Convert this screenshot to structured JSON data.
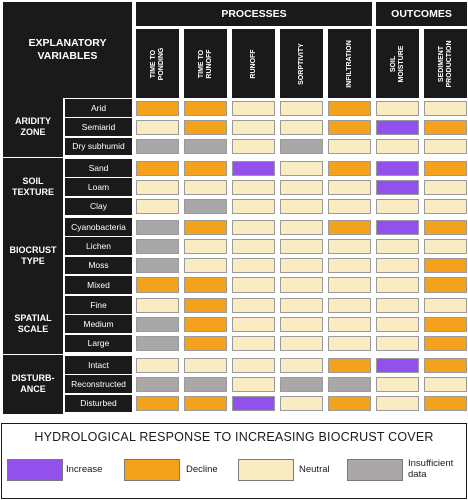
{
  "header": {
    "explanatory": "EXPLANATORY\nVARIABLES",
    "processes": "PROCESSES",
    "outcomes": "OUTCOMES"
  },
  "columns": [
    "TIME TO\nPONDING",
    "TIME TO\nRUNOFF",
    "RUNOFF",
    "SORPTIVITY",
    "INFILTRATION",
    "SOIL\nMOISTURE",
    "SEDIMENT\nPRODUCTION"
  ],
  "groups": [
    {
      "label": "ARIDITY\nZONE",
      "rows": [
        {
          "label": "Arid",
          "cells": [
            "D",
            "D",
            "N",
            "N",
            "D",
            "N",
            "N"
          ]
        },
        {
          "label": "Semiarid",
          "cells": [
            "N",
            "D",
            "N",
            "N",
            "D",
            "I",
            "D"
          ]
        },
        {
          "label": "Dry subhumid",
          "cells": [
            "S",
            "S",
            "N",
            "S",
            "N",
            "N",
            "N"
          ]
        }
      ]
    },
    {
      "label": "SOIL\nTEXTURE",
      "rows": [
        {
          "label": "Sand",
          "cells": [
            "D",
            "D",
            "I",
            "N",
            "D",
            "I",
            "D"
          ]
        },
        {
          "label": "Loam",
          "cells": [
            "N",
            "N",
            "N",
            "N",
            "N",
            "I",
            "N"
          ]
        },
        {
          "label": "Clay",
          "cells": [
            "N",
            "S",
            "N",
            "N",
            "N",
            "N",
            "N"
          ]
        }
      ]
    },
    {
      "label": "BIOCRUST\nTYPE",
      "rows": [
        {
          "label": "Cyanobacteria",
          "cells": [
            "S",
            "D",
            "N",
            "N",
            "D",
            "I",
            "D"
          ]
        },
        {
          "label": "Lichen",
          "cells": [
            "S",
            "N",
            "N",
            "N",
            "N",
            "N",
            "N"
          ]
        },
        {
          "label": "Moss",
          "cells": [
            "S",
            "N",
            "N",
            "N",
            "N",
            "N",
            "D"
          ]
        },
        {
          "label": "Mixed",
          "cells": [
            "D",
            "D",
            "N",
            "N",
            "N",
            "N",
            "D"
          ]
        }
      ]
    },
    {
      "label": "SPATIAL\nSCALE",
      "rows": [
        {
          "label": "Fine",
          "cells": [
            "N",
            "D",
            "N",
            "N",
            "N",
            "N",
            "N"
          ]
        },
        {
          "label": "Medium",
          "cells": [
            "S",
            "D",
            "N",
            "N",
            "N",
            "N",
            "D"
          ]
        },
        {
          "label": "Large",
          "cells": [
            "S",
            "D",
            "N",
            "N",
            "N",
            "N",
            "D"
          ]
        }
      ]
    },
    {
      "label": "DISTURB-\nANCE",
      "rows": [
        {
          "label": "Intact",
          "cells": [
            "N",
            "N",
            "N",
            "N",
            "D",
            "I",
            "D"
          ]
        },
        {
          "label": "Reconstructed",
          "cells": [
            "S",
            "S",
            "N",
            "S",
            "S",
            "N",
            "N"
          ]
        },
        {
          "label": "Disturbed",
          "cells": [
            "D",
            "D",
            "I",
            "N",
            "D",
            "N",
            "D"
          ]
        }
      ]
    }
  ],
  "colors": {
    "I": "#9251ec",
    "D": "#f4a11c",
    "N": "#f9ecc2",
    "S": "#a9a7a8"
  },
  "legend": {
    "title": "HYDROLOGICAL RESPONSE TO INCREASING BIOCRUST COVER",
    "items": [
      {
        "key": "I",
        "label": "Increase"
      },
      {
        "key": "D",
        "label": "Decline"
      },
      {
        "key": "N",
        "label": "Neutral"
      },
      {
        "key": "S",
        "label": "Insufficient\ndata"
      }
    ]
  }
}
